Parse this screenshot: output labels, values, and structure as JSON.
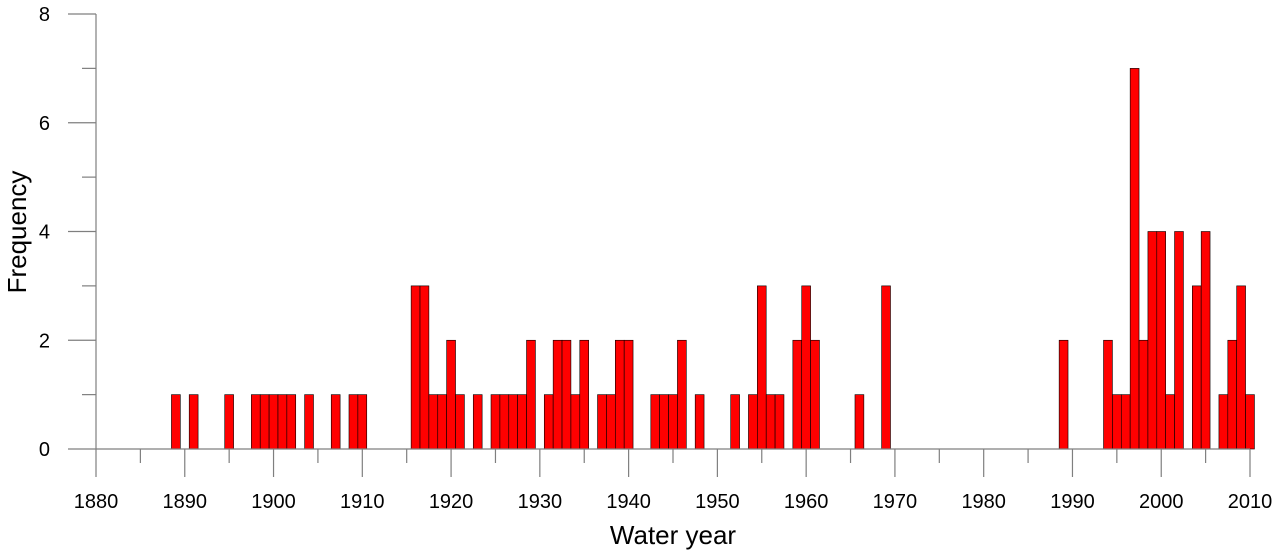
{
  "chart_data": {
    "type": "bar",
    "title": "",
    "xlabel": "Water year",
    "ylabel": "Frequency",
    "xlim": [
      1880,
      2010
    ],
    "ylim": [
      0,
      8
    ],
    "x_major_ticks": [
      1880,
      1890,
      1900,
      1910,
      1920,
      1930,
      1940,
      1950,
      1960,
      1970,
      1980,
      1990,
      2000,
      2010
    ],
    "x_minor_ticks": [
      1885,
      1895,
      1905,
      1915,
      1925,
      1935,
      1945,
      1955,
      1965,
      1975,
      1985,
      1995,
      2005
    ],
    "y_major_ticks": [
      0,
      2,
      4,
      6,
      8
    ],
    "y_minor_ticks": [
      1,
      3,
      5,
      7
    ],
    "bar_color": "#ff0000",
    "grid": false,
    "x": [
      1889,
      1891,
      1895,
      1898,
      1899,
      1900,
      1901,
      1902,
      1904,
      1907,
      1909,
      1910,
      1916,
      1917,
      1918,
      1919,
      1920,
      1921,
      1923,
      1925,
      1926,
      1927,
      1928,
      1929,
      1931,
      1932,
      1933,
      1934,
      1935,
      1937,
      1938,
      1939,
      1940,
      1943,
      1944,
      1945,
      1946,
      1948,
      1952,
      1954,
      1955,
      1956,
      1957,
      1959,
      1960,
      1961,
      1966,
      1969,
      1989,
      1994,
      1995,
      1996,
      1997,
      1998,
      1999,
      2000,
      2001,
      2002,
      2004,
      2005,
      2007,
      2008,
      2009,
      2010
    ],
    "values": [
      1,
      1,
      1,
      1,
      1,
      1,
      1,
      1,
      1,
      1,
      1,
      1,
      3,
      3,
      1,
      1,
      2,
      1,
      1,
      1,
      1,
      1,
      1,
      2,
      1,
      2,
      2,
      1,
      2,
      1,
      1,
      2,
      2,
      1,
      1,
      1,
      2,
      1,
      1,
      1,
      3,
      1,
      1,
      2,
      3,
      2,
      1,
      3,
      2,
      2,
      1,
      1,
      7,
      2,
      4,
      4,
      1,
      4,
      3,
      4,
      1,
      2,
      3,
      1
    ]
  }
}
